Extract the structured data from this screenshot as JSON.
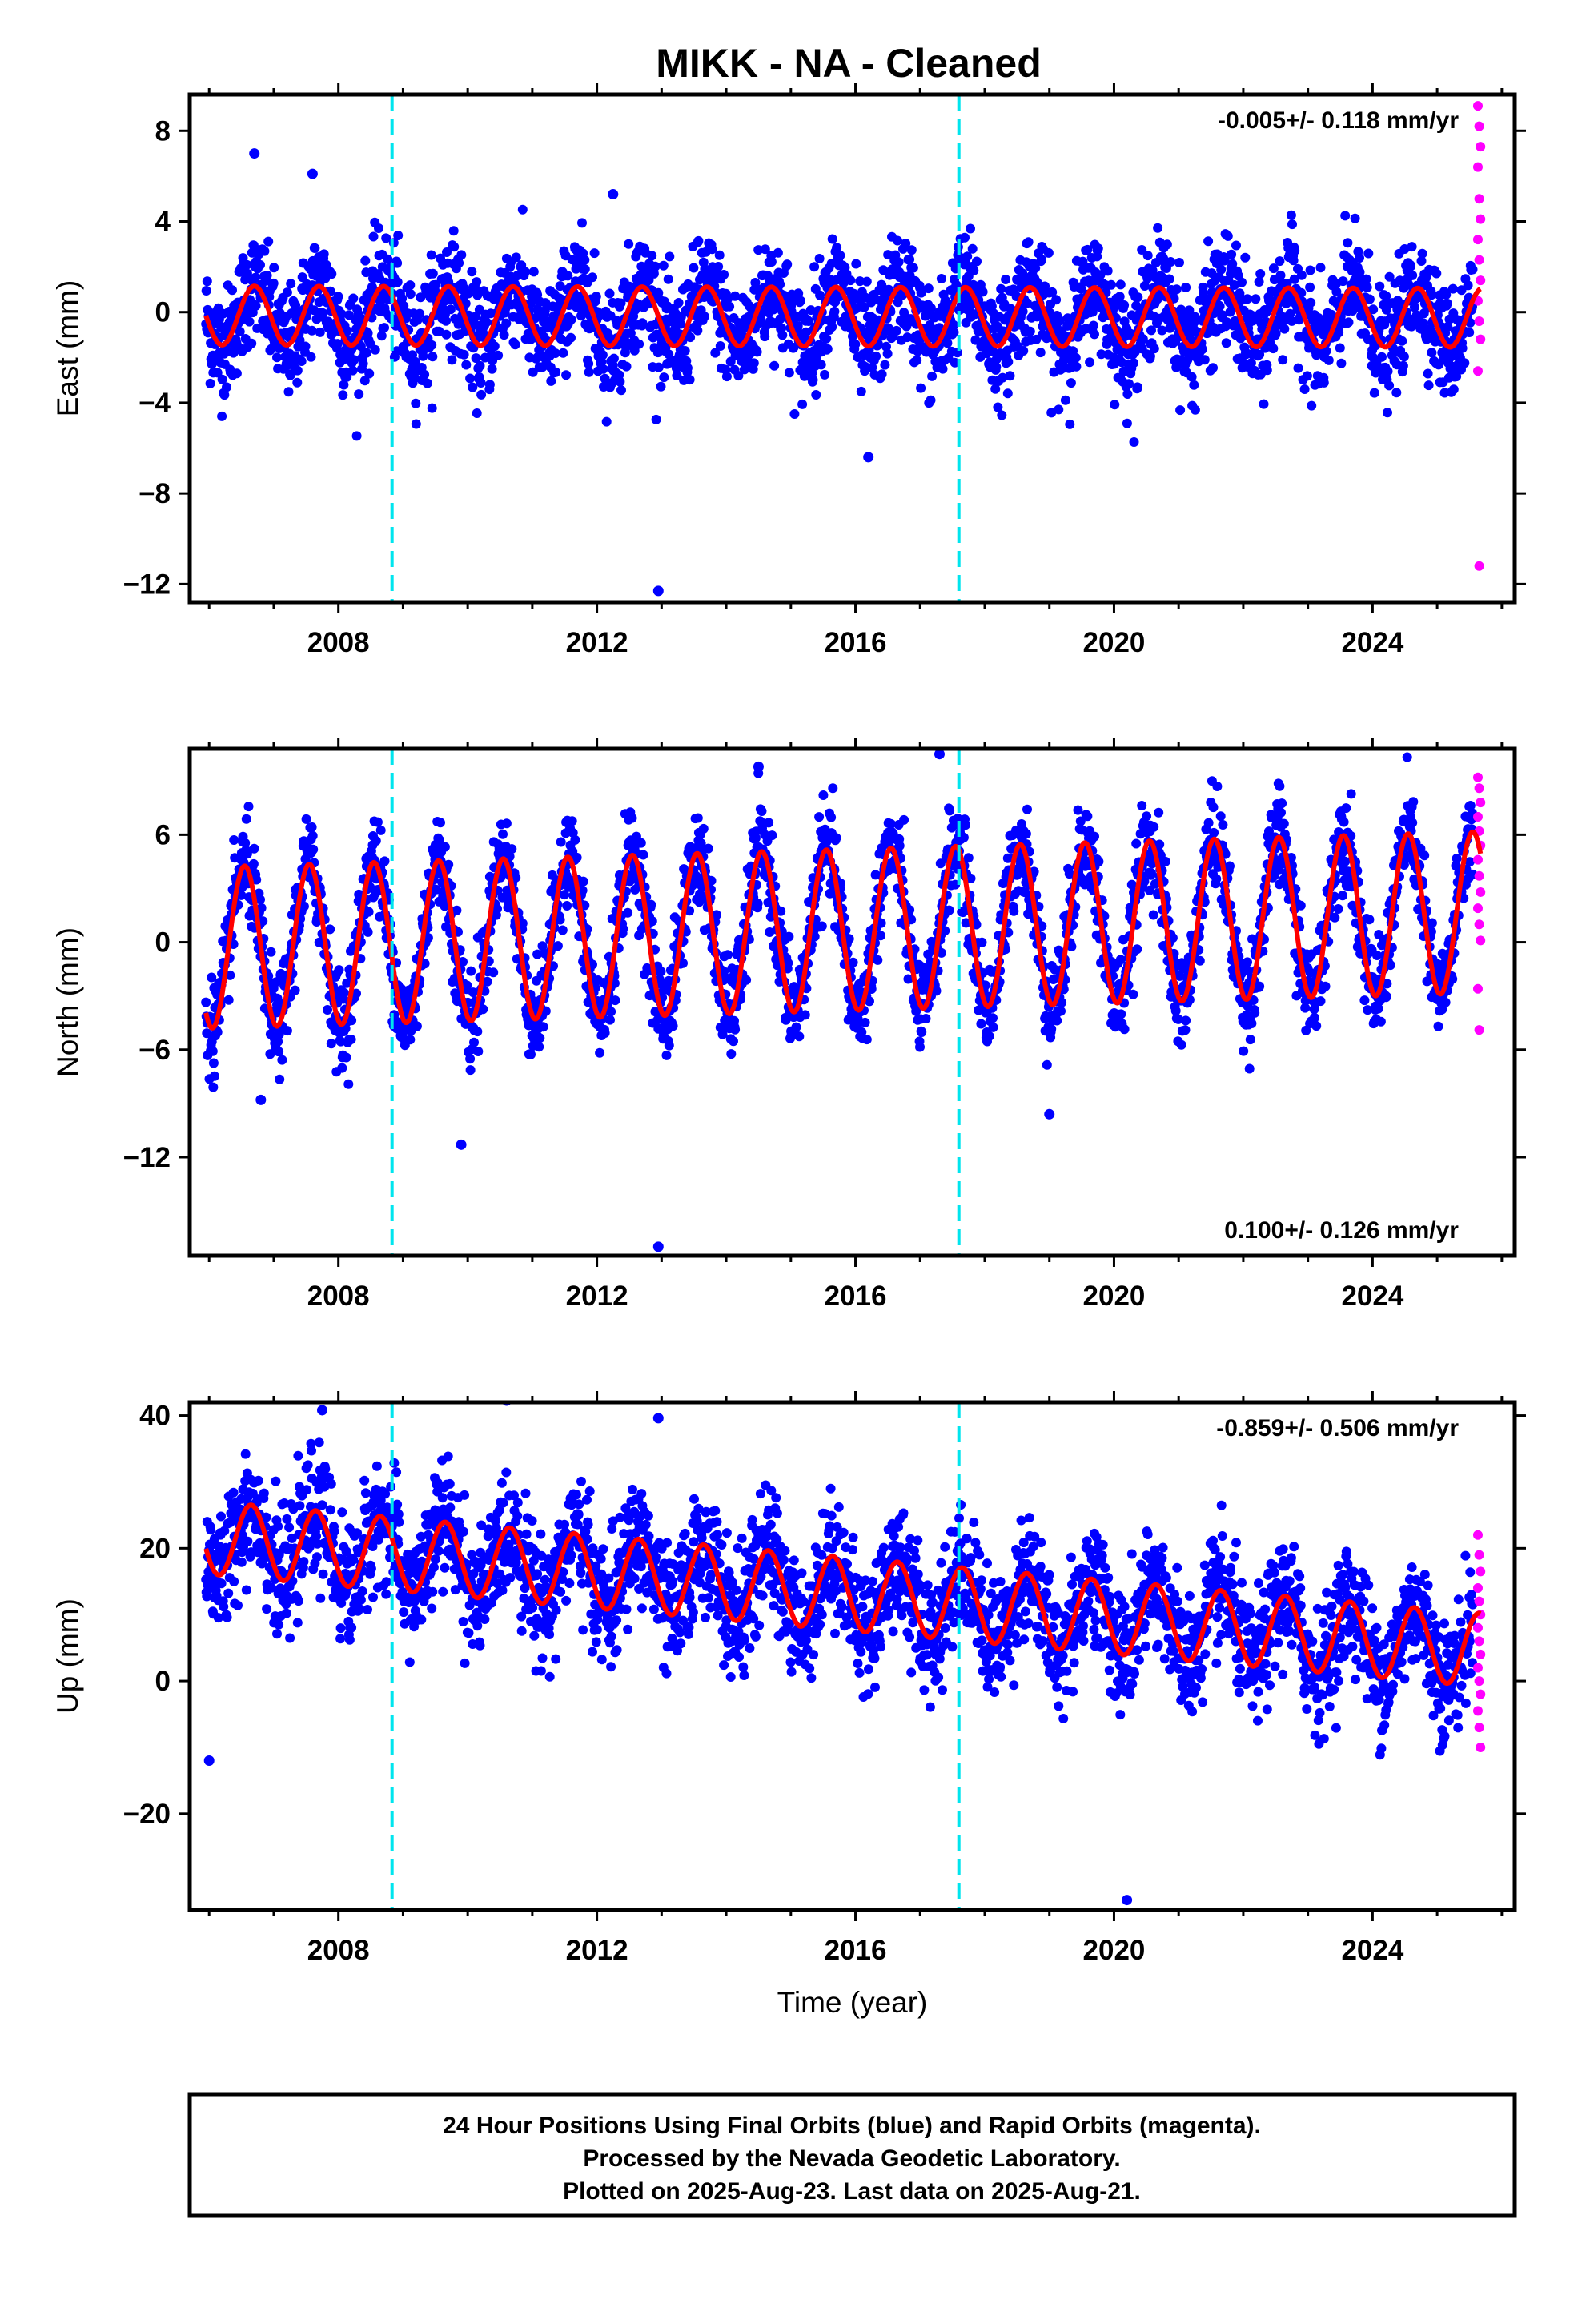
{
  "title": "MIKK  - NA - Cleaned",
  "colors": {
    "final_orbits": "#0000ff",
    "rapid_orbits": "#ff00ff",
    "model_fit": "#ff0000",
    "event_lines": "#00e5ee"
  },
  "caption": {
    "line1": "24 Hour Positions Using Final Orbits (blue) and Rapid Orbits (magenta).",
    "line2": "Processed by the Nevada Geodetic Laboratory.",
    "line3": "Plotted on 2025-Aug-23. Last data on 2025-Aug-21."
  },
  "chart_data": [
    {
      "type": "scatter",
      "component": "east",
      "ylabel": "East (mm)",
      "xlabel": "",
      "xlim": [
        2005.7,
        2026.2
      ],
      "ylim": [
        -12.8,
        9.6
      ],
      "xticks": [
        2008,
        2012,
        2016,
        2020,
        2024
      ],
      "yticks": [
        8,
        4,
        0,
        -4,
        -8,
        -12
      ],
      "ytick_labels": [
        "8",
        "4",
        "0",
        "−4",
        "−8",
        "−12"
      ],
      "velocity_label": "-0.005+/- 0.118 mm/yr",
      "velocity_label_position": "top-right",
      "event_lines": [
        2008.83,
        2017.6
      ],
      "data_start": 2005.95,
      "data_end": 2025.55,
      "seasonal_fit": {
        "offset": -0.2,
        "rate": -0.005,
        "amplitude": 1.3,
        "peak_phase": 0.7
      },
      "scatter_sigma": 1.2,
      "rapid_orbit_values": [
        9.1,
        8.2,
        7.3,
        6.4,
        5.0,
        4.1,
        3.2,
        2.3,
        1.4,
        0.5,
        -0.4,
        -1.2,
        -2.6,
        -11.2
      ],
      "outliers": [
        [
          2012.95,
          -12.3
        ],
        [
          2016.2,
          -6.4
        ],
        [
          2007.6,
          6.1
        ],
        [
          2006.7,
          7.0
        ],
        [
          2012.25,
          5.2
        ]
      ]
    },
    {
      "type": "scatter",
      "component": "north",
      "ylabel": "North (mm)",
      "xlabel": "",
      "xlim": [
        2005.7,
        2026.2
      ],
      "ylim": [
        -17.5,
        10.8
      ],
      "xticks": [
        2008,
        2012,
        2016,
        2020,
        2024
      ],
      "yticks": [
        6,
        0,
        -6,
        -12
      ],
      "ytick_labels": [
        "6",
        "0",
        "−6",
        "−12"
      ],
      "velocity_label": "0.100+/- 0.126 mm/yr",
      "velocity_label_position": "bottom-right",
      "event_lines": [
        2008.83,
        2017.6
      ],
      "data_start": 2005.95,
      "data_end": 2025.55,
      "seasonal_fit": {
        "offset": 0.7,
        "rate": 0.1,
        "amplitude": 4.5,
        "peak_phase": 0.55
      },
      "scatter_sigma": 1.3,
      "rapid_orbit_values": [
        9.2,
        8.6,
        7.8,
        7.0,
        6.2,
        5.4,
        4.6,
        3.7,
        2.8,
        1.9,
        1.0,
        0.1,
        -2.6,
        -4.9
      ],
      "outliers": [
        [
          2012.95,
          -17.0
        ],
        [
          2009.9,
          -11.3
        ],
        [
          2019.0,
          -9.6
        ],
        [
          2006.8,
          -8.8
        ],
        [
          2017.3,
          10.5
        ],
        [
          2014.5,
          9.8
        ]
      ]
    },
    {
      "type": "scatter",
      "component": "up",
      "ylabel": "Up (mm)",
      "xlabel": "Time (year)",
      "xlim": [
        2005.7,
        2026.2
      ],
      "ylim": [
        -34.5,
        42
      ],
      "xticks": [
        2008,
        2012,
        2016,
        2020,
        2024
      ],
      "yticks": [
        40,
        20,
        0,
        -20
      ],
      "ytick_labels": [
        "40",
        "20",
        "0",
        "−20"
      ],
      "velocity_label": "-0.859+/- 0.506 mm/yr",
      "velocity_label_position": "top-right",
      "event_lines": [
        2008.83,
        2017.6
      ],
      "data_start": 2005.95,
      "data_end": 2025.55,
      "seasonal_fit": {
        "offset": 13.0,
        "rate": -0.859,
        "amplitude": 5.5,
        "peak_phase": 0.65
      },
      "scatter_sigma": 4.5,
      "rapid_orbit_values": [
        22.0,
        19.0,
        16.5,
        14.0,
        12.0,
        10.0,
        8.0,
        6.0,
        4.0,
        2.0,
        0.0,
        -2.0,
        -4.5,
        -7.0,
        -10.0
      ],
      "outliers": [
        [
          2007.75,
          40.8
        ],
        [
          2012.95,
          39.6
        ],
        [
          2020.2,
          -33.0
        ],
        [
          2006.0,
          -12.0
        ]
      ]
    }
  ]
}
